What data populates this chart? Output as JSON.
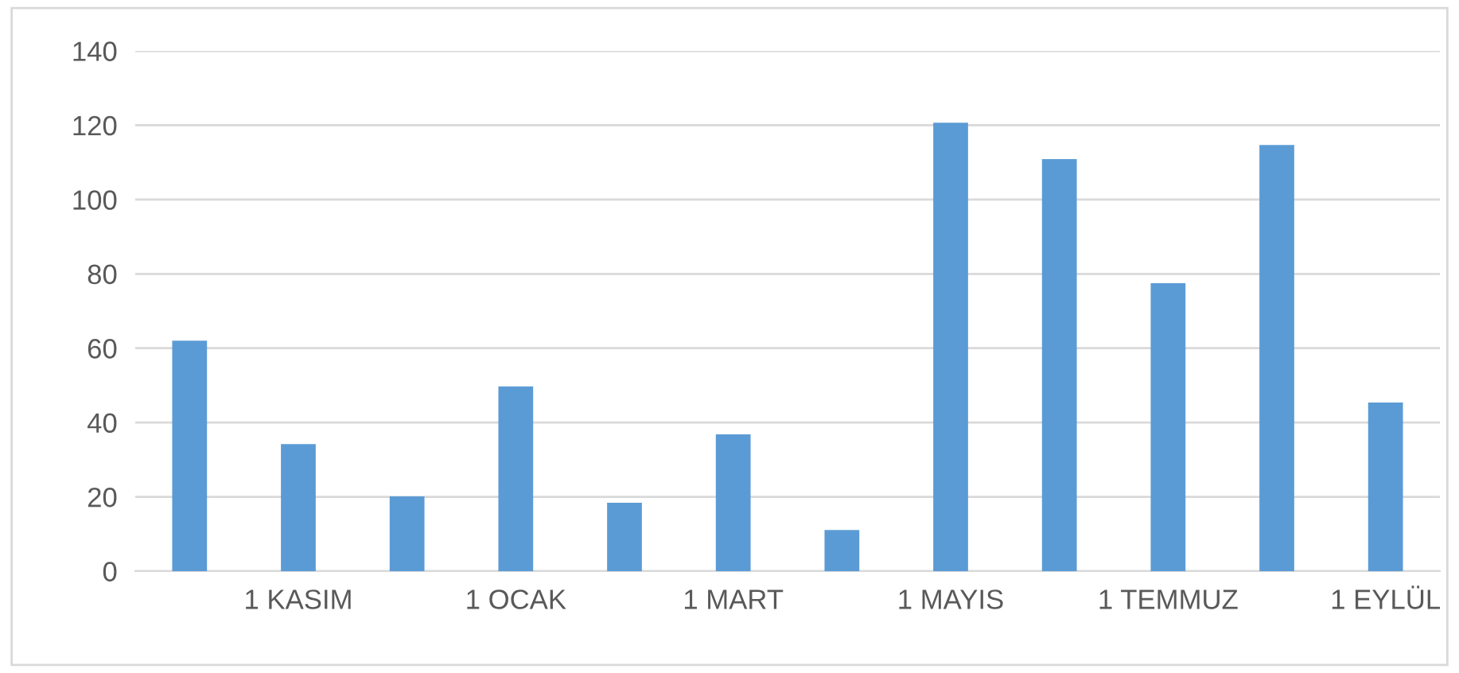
{
  "chart_data": {
    "type": "bar",
    "categories": [
      null,
      "1 KASIM",
      null,
      "1 OCAK",
      null,
      "1 MART",
      null,
      "1 MAYIS",
      null,
      "1 TEMMUZ",
      null,
      "1 EYLÜL"
    ],
    "values": [
      62,
      34.2,
      20.1,
      49.7,
      18.4,
      36.8,
      11.1,
      120.7,
      110.9,
      77.5,
      114.7,
      45.4
    ],
    "color": "#5b9bd5",
    "ylim": [
      0,
      140
    ],
    "yticks": [
      0,
      20,
      40,
      60,
      80,
      100,
      120,
      140
    ],
    "grid": "y",
    "legend": false
  }
}
